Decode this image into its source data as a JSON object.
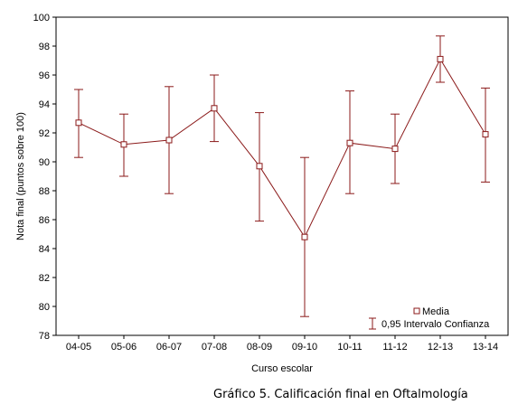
{
  "chart_data": {
    "type": "line",
    "xlabel": "Curso escolar",
    "ylabel": "Nota final (puntos sobre 100)",
    "ylim": [
      78,
      100
    ],
    "yticks": [
      78,
      80,
      82,
      84,
      86,
      88,
      90,
      92,
      94,
      96,
      98,
      100
    ],
    "categories": [
      "04-05",
      "05-06",
      "06-07",
      "07-08",
      "08-09",
      "09-10",
      "10-11",
      "11-12",
      "12-13",
      "13-14"
    ],
    "series": [
      {
        "name": "Media",
        "values": [
          92.7,
          91.2,
          91.5,
          93.7,
          89.7,
          84.8,
          91.3,
          90.9,
          97.1,
          91.9
        ],
        "lower": [
          90.3,
          89.0,
          87.8,
          91.4,
          85.9,
          79.3,
          87.8,
          88.5,
          95.5,
          88.6
        ],
        "upper": [
          95.0,
          93.3,
          95.2,
          96.0,
          93.4,
          90.3,
          94.9,
          93.3,
          98.7,
          95.1
        ]
      }
    ],
    "legend": {
      "placement": "bottom-right",
      "entries": [
        "Media",
        "0,95 Intervalo Confianza"
      ]
    },
    "colors": {
      "series": "#8b1a1a",
      "axis": "#000000"
    },
    "grid": false
  },
  "caption": "Gráfico 5. Calificación final en Oftalmología"
}
